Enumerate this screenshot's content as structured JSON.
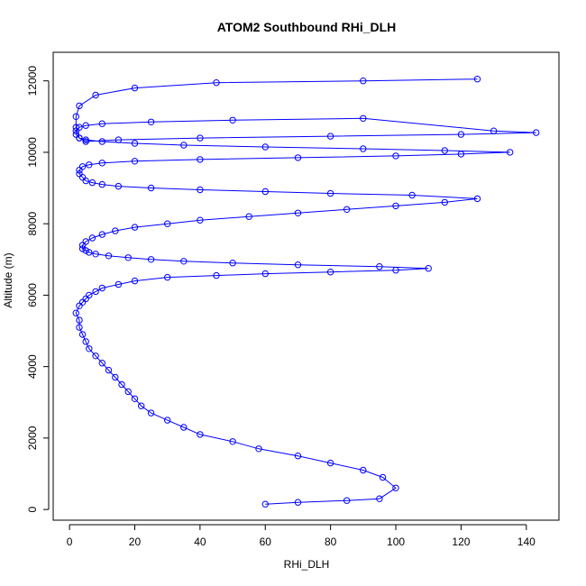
{
  "chart_data": {
    "type": "scatter",
    "title": "ATOM2 Southbound RHi_DLH",
    "xlabel": "RHi_DLH",
    "ylabel": "Altitude (m)",
    "xlim": [
      -5,
      150
    ],
    "ylim": [
      -300,
      12800
    ],
    "xticks": [
      0,
      20,
      40,
      60,
      80,
      100,
      120,
      140
    ],
    "yticks": [
      0,
      2000,
      4000,
      6000,
      8000,
      10000,
      12000
    ],
    "grid": false,
    "legend": "none",
    "marker": "open-circle",
    "connected": true,
    "series": [
      {
        "color": "#0000ff",
        "x": [
          60,
          70,
          85,
          95,
          100,
          96,
          90,
          80,
          70,
          58,
          50,
          40,
          35,
          30,
          25,
          22,
          20,
          18,
          16,
          14,
          12,
          10,
          8,
          6,
          5,
          4,
          3,
          3,
          2,
          3,
          4,
          5,
          6,
          8,
          10,
          15,
          20,
          30,
          45,
          60,
          80,
          100,
          110,
          95,
          70,
          50,
          35,
          25,
          18,
          12,
          8,
          6,
          5,
          4,
          4,
          5,
          7,
          10,
          14,
          20,
          30,
          40,
          55,
          70,
          85,
          100,
          115,
          125,
          105,
          80,
          60,
          40,
          25,
          15,
          10,
          7,
          5,
          4,
          3,
          3,
          4,
          6,
          10,
          20,
          40,
          70,
          100,
          120,
          135,
          115,
          90,
          60,
          35,
          20,
          10,
          5,
          3,
          2,
          2,
          3,
          5,
          10,
          25,
          50,
          90,
          130,
          143,
          120,
          80,
          40,
          15,
          5,
          3,
          2,
          2,
          3,
          8,
          20,
          45,
          90,
          125
        ],
        "y": [
          150,
          200,
          250,
          300,
          600,
          900,
          1100,
          1300,
          1500,
          1700,
          1900,
          2100,
          2300,
          2500,
          2700,
          2900,
          3100,
          3300,
          3500,
          3700,
          3900,
          4100,
          4300,
          4500,
          4700,
          4900,
          5100,
          5300,
          5500,
          5700,
          5800,
          5900,
          6000,
          6100,
          6200,
          6300,
          6400,
          6500,
          6550,
          6600,
          6650,
          6700,
          6750,
          6800,
          6850,
          6900,
          6950,
          7000,
          7050,
          7100,
          7150,
          7200,
          7250,
          7300,
          7400,
          7500,
          7600,
          7700,
          7800,
          7900,
          8000,
          8100,
          8200,
          8300,
          8400,
          8500,
          8600,
          8700,
          8800,
          8850,
          8900,
          8950,
          9000,
          9050,
          9100,
          9150,
          9200,
          9300,
          9400,
          9500,
          9600,
          9650,
          9700,
          9750,
          9800,
          9850,
          9900,
          9950,
          10000,
          10050,
          10100,
          10150,
          10200,
          10250,
          10300,
          10350,
          10400,
          10500,
          10600,
          10700,
          10750,
          10800,
          10850,
          10900,
          10950,
          10600,
          10550,
          10500,
          10450,
          10400,
          10350,
          10300,
          10400,
          10700,
          11000,
          11300,
          11600,
          11800,
          11950,
          12000,
          12050
        ]
      }
    ]
  }
}
